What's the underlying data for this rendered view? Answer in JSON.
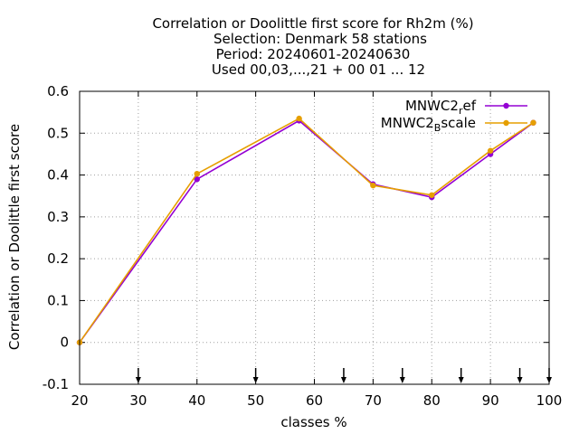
{
  "chart_data": {
    "type": "line",
    "title_lines": [
      "Correlation or Doolittle first score  for Rh2m (%)",
      "Selection: Denmark     58 stations",
      "Period: 20240601-20240630",
      "Used 00,03,...,21 + 00 01 ... 12"
    ],
    "xlabel": "classes %",
    "ylabel": "Correlation or Doolittle first score",
    "xlim": [
      20,
      100
    ],
    "ylim": [
      -0.1,
      0.6
    ],
    "x_ticks": [
      20,
      30,
      40,
      50,
      60,
      70,
      80,
      90,
      100
    ],
    "y_ticks": [
      -0.1,
      0,
      0.1,
      0.2,
      0.3,
      0.4,
      0.5,
      0.6
    ],
    "x_tick_labels": [
      "20",
      "30",
      "40",
      "50",
      "60",
      "70",
      "80",
      "90",
      "100"
    ],
    "y_tick_labels": [
      "-0.1",
      "0",
      "0.1",
      "0.2",
      "0.3",
      "0.4",
      "0.5",
      "0.6"
    ],
    "grid": true,
    "legend_position": "top-right",
    "class_markers_x": [
      30,
      50,
      65,
      75,
      85,
      95,
      100
    ],
    "series": [
      {
        "name": "MNWC2_ref",
        "label_main": "MNWC2",
        "label_sub": "r",
        "label_tail": "ef",
        "color": "#9400d3",
        "x": [
          20,
          40,
          57.4,
          70,
          80,
          90,
          97.3
        ],
        "y": [
          0.0,
          0.39,
          0.53,
          0.378,
          0.347,
          0.45,
          0.525
        ]
      },
      {
        "name": "MNWC2_Bscale",
        "label_main": "MNWC2",
        "label_sub": "B",
        "label_tail": "scale",
        "color": "#e69f00",
        "x": [
          20,
          40,
          57.4,
          70,
          80,
          90,
          97.3
        ],
        "y": [
          0.0,
          0.403,
          0.535,
          0.375,
          0.352,
          0.458,
          0.525
        ]
      }
    ]
  }
}
